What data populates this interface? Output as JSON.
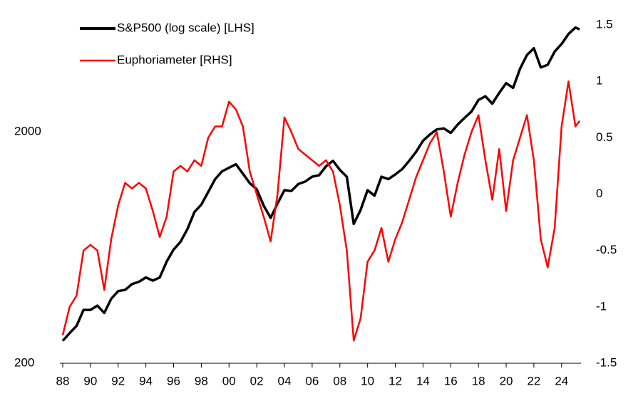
{
  "chart_data": {
    "type": "line",
    "x": [
      1988,
      1988.5,
      1989,
      1989.5,
      1990,
      1990.5,
      1991,
      1991.5,
      1992,
      1992.5,
      1993,
      1993.5,
      1994,
      1994.5,
      1995,
      1995.5,
      1996,
      1996.5,
      1997,
      1997.5,
      1998,
      1998.5,
      1999,
      1999.5,
      2000,
      2000.5,
      2001,
      2001.5,
      2002,
      2002.5,
      2003,
      2003.5,
      2004,
      2004.5,
      2005,
      2005.5,
      2006,
      2006.5,
      2007,
      2007.5,
      2008,
      2008.5,
      2009,
      2009.5,
      2010,
      2010.5,
      2011,
      2011.5,
      2012,
      2012.5,
      2013,
      2013.5,
      2014,
      2014.5,
      2015,
      2015.5,
      2016,
      2016.5,
      2017,
      2017.5,
      2018,
      2018.5,
      2019,
      2019.5,
      2020,
      2020.5,
      2021,
      2021.5,
      2022,
      2022.5,
      2023,
      2023.5,
      2024,
      2024.5,
      2025,
      2025.3
    ],
    "series": [
      {
        "name": "S&P500 (log scale) [LHS]",
        "color": "#000000",
        "axis": "y",
        "values": [
          250,
          270,
          290,
          340,
          340,
          355,
          330,
          380,
          410,
          415,
          440,
          450,
          470,
          455,
          470,
          550,
          620,
          670,
          760,
          900,
          970,
          1100,
          1250,
          1350,
          1400,
          1450,
          1320,
          1200,
          1130,
          960,
          850,
          980,
          1120,
          1110,
          1190,
          1220,
          1280,
          1300,
          1420,
          1500,
          1370,
          1280,
          800,
          920,
          1120,
          1060,
          1280,
          1250,
          1310,
          1380,
          1500,
          1640,
          1830,
          1950,
          2050,
          2070,
          1980,
          2150,
          2300,
          2450,
          2750,
          2850,
          2650,
          2950,
          3250,
          3100,
          3750,
          4300,
          4600,
          3800,
          3900,
          4450,
          4800,
          5300,
          5650,
          5550
        ]
      },
      {
        "name": "Euphoriameter [RHS]",
        "color": "#ff0000",
        "axis": "y2",
        "values": [
          -1.25,
          -1.0,
          -0.9,
          -0.5,
          -0.45,
          -0.5,
          -0.85,
          -0.4,
          -0.1,
          0.1,
          0.05,
          0.1,
          0.05,
          -0.15,
          -0.38,
          -0.2,
          0.2,
          0.25,
          0.2,
          0.3,
          0.25,
          0.5,
          0.6,
          0.6,
          0.82,
          0.75,
          0.6,
          0.2,
          0.0,
          -0.2,
          -0.42,
          0.0,
          0.68,
          0.55,
          0.4,
          0.35,
          0.3,
          0.25,
          0.3,
          0.2,
          -0.1,
          -0.5,
          -1.3,
          -1.1,
          -0.6,
          -0.5,
          -0.3,
          -0.6,
          -0.4,
          -0.25,
          -0.05,
          0.15,
          0.3,
          0.45,
          0.55,
          0.2,
          -0.2,
          0.1,
          0.35,
          0.55,
          0.7,
          0.3,
          -0.05,
          0.4,
          -0.15,
          0.3,
          0.5,
          0.7,
          0.3,
          -0.4,
          -0.65,
          -0.3,
          0.6,
          1.0,
          0.6,
          0.65
        ]
      }
    ],
    "xlim": [
      1988,
      2025.4
    ],
    "xticks": [
      {
        "value": 1988,
        "label": "88"
      },
      {
        "value": 1990,
        "label": "90"
      },
      {
        "value": 1992,
        "label": "92"
      },
      {
        "value": 1994,
        "label": "94"
      },
      {
        "value": 1996,
        "label": "96"
      },
      {
        "value": 1998,
        "label": "98"
      },
      {
        "value": 2000,
        "label": "00"
      },
      {
        "value": 2002,
        "label": "02"
      },
      {
        "value": 2004,
        "label": "04"
      },
      {
        "value": 2006,
        "label": "06"
      },
      {
        "value": 2008,
        "label": "08"
      },
      {
        "value": 2010,
        "label": "10"
      },
      {
        "value": 2012,
        "label": "12"
      },
      {
        "value": 2014,
        "label": "14"
      },
      {
        "value": 2016,
        "label": "16"
      },
      {
        "value": 2018,
        "label": "18"
      },
      {
        "value": 2020,
        "label": "20"
      },
      {
        "value": 2022,
        "label": "22"
      },
      {
        "value": 2024,
        "label": "24"
      }
    ],
    "ylim": [
      200,
      5800
    ],
    "yticks": [
      200,
      2000
    ],
    "ylog": true,
    "y2lim": [
      -1.5,
      1.5
    ],
    "y2ticks": [
      1.5,
      1,
      0.5,
      0,
      -0.5,
      -1,
      -1.5
    ],
    "grid": false,
    "legend": "upper left"
  }
}
